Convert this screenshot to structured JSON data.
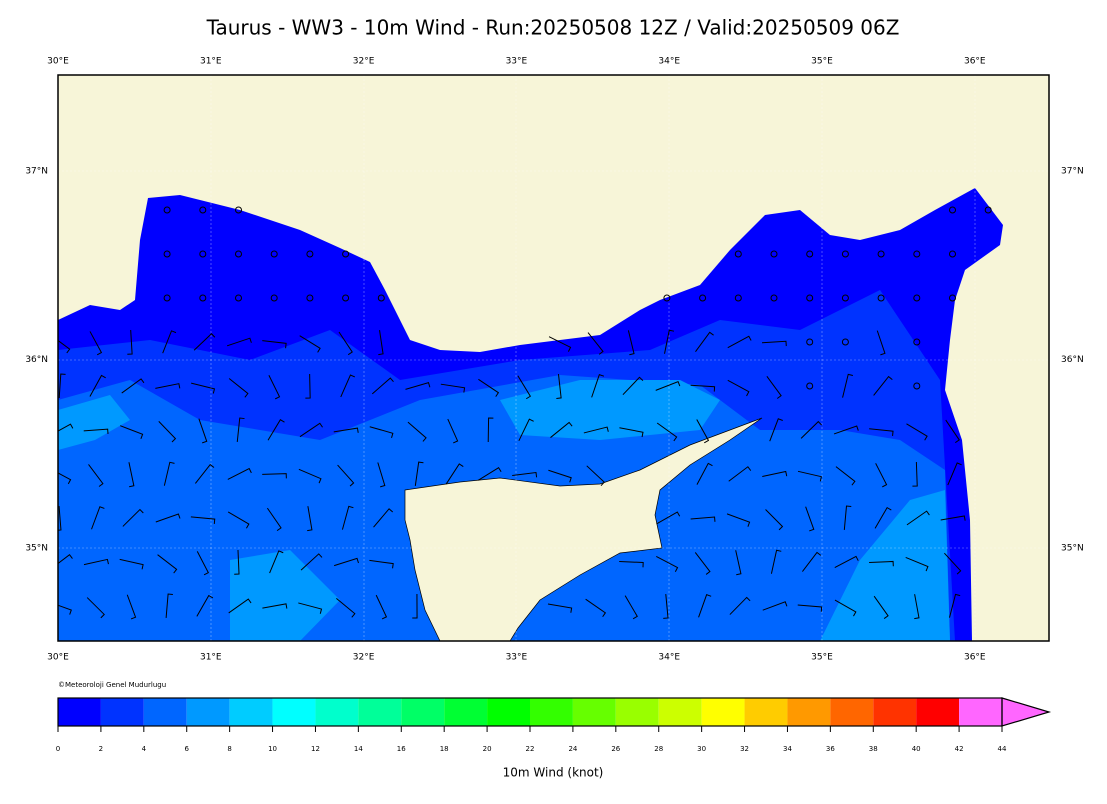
{
  "header": {
    "title": "Taurus - WW3 - 10m Wind - Run:20250508 12Z / Valid:20250509 06Z"
  },
  "map": {
    "lon_labels": [
      "30°E",
      "31°E",
      "32°E",
      "33°E",
      "34°E",
      "35°E",
      "36°E"
    ],
    "lat_labels": [
      "37°N",
      "36°N",
      "35°N"
    ],
    "copyright": "©Meteoroloji Genel Mudurlugu"
  },
  "colorbar": {
    "label": "10m Wind (knot)",
    "ticks": [
      0,
      2,
      4,
      6,
      8,
      10,
      12,
      14,
      16,
      18,
      20,
      22,
      24,
      26,
      28,
      30,
      32,
      34,
      36,
      38,
      40,
      42,
      44
    ],
    "colors": [
      "#0000ff",
      "#0033ff",
      "#0066ff",
      "#0099ff",
      "#00ccff",
      "#00ffff",
      "#00ffcc",
      "#00ff99",
      "#00ff66",
      "#00ff33",
      "#00ff00",
      "#33ff00",
      "#66ff00",
      "#99ff00",
      "#ccff00",
      "#ffff00",
      "#ffcc00",
      "#ff9900",
      "#ff6600",
      "#ff3300",
      "#ff0000",
      "#ff66ff"
    ]
  }
}
